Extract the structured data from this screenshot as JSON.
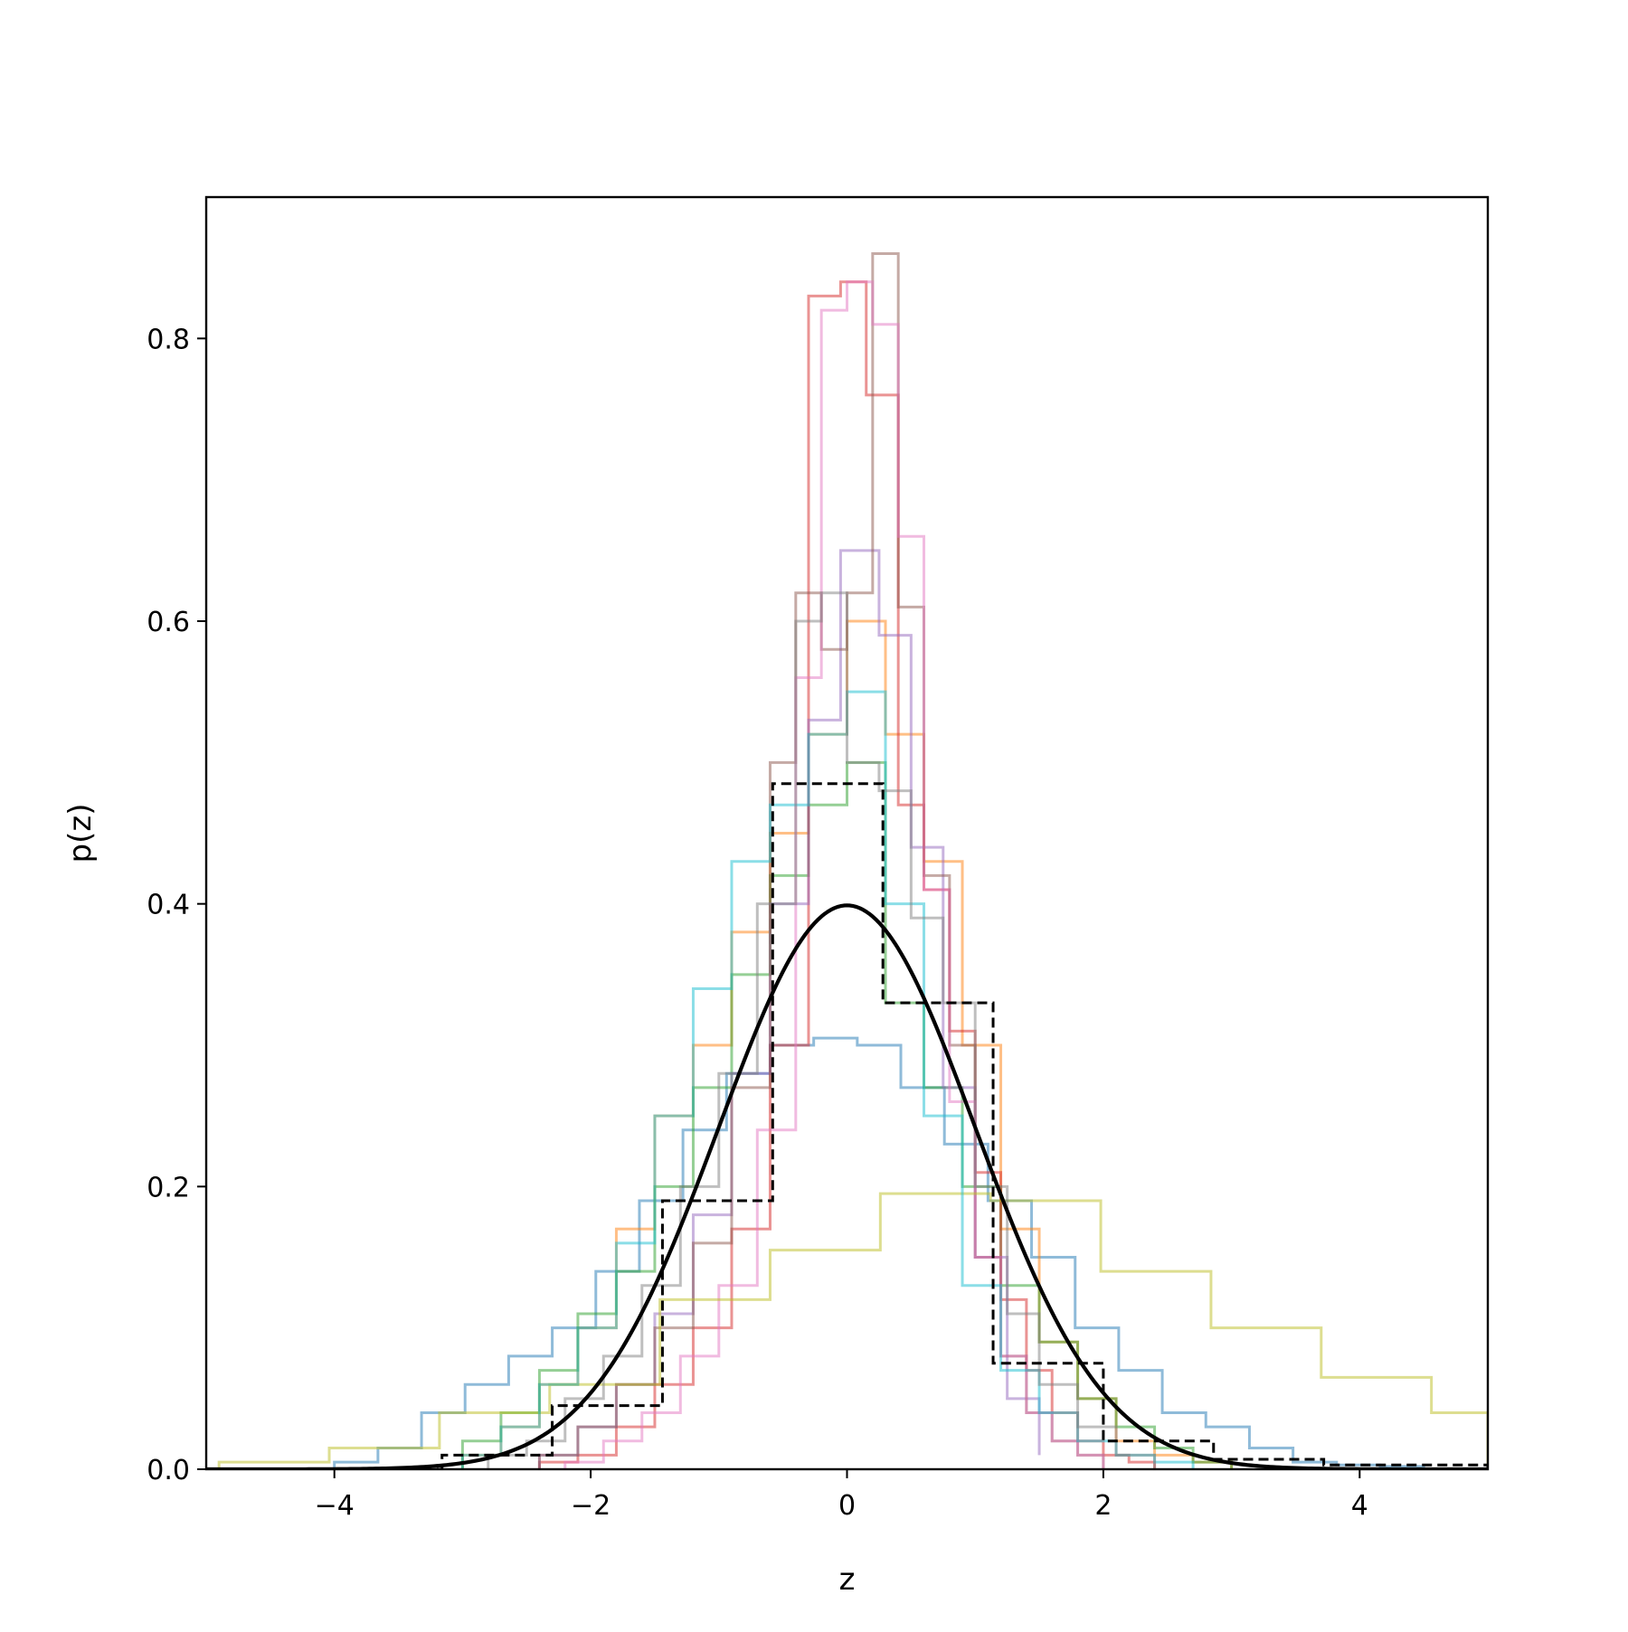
{
  "chart_data": {
    "type": "histogram-step",
    "xlabel": "z",
    "ylabel": "p(z)",
    "xlim": [
      -5,
      5
    ],
    "ylim": [
      0,
      0.9
    ],
    "x_ticks": [
      -4,
      -2,
      0,
      2,
      4
    ],
    "y_ticks": [
      0.0,
      0.2,
      0.4,
      0.6,
      0.8
    ],
    "x_tick_labels": [
      "−4",
      "−2",
      "0",
      "2",
      "4"
    ],
    "y_tick_labels": [
      "0.0",
      "0.2",
      "0.4",
      "0.6",
      "0.8"
    ],
    "grid": false,
    "legend": false,
    "series": [
      {
        "color": "#1f77b4",
        "edges": [
          -4.0,
          -3.66,
          -3.32,
          -2.98,
          -2.64,
          -2.3,
          -1.96,
          -1.62,
          -1.28,
          -0.94,
          -0.6,
          -0.26,
          0.08,
          0.42,
          0.76,
          1.1,
          1.44,
          1.78,
          2.12,
          2.46,
          2.8,
          3.14,
          3.48,
          3.82,
          4.16,
          4.5
        ],
        "values": [
          0.005,
          0.015,
          0.04,
          0.06,
          0.08,
          0.1,
          0.14,
          0.19,
          0.24,
          0.28,
          0.3,
          0.305,
          0.3,
          0.27,
          0.23,
          0.19,
          0.15,
          0.1,
          0.07,
          0.04,
          0.03,
          0.015,
          0.005,
          0.003,
          0.002
        ]
      },
      {
        "color": "#ff7f0e",
        "edges": [
          -3.0,
          -2.7,
          -2.4,
          -2.1,
          -1.8,
          -1.5,
          -1.2,
          -0.9,
          -0.6,
          -0.3,
          0.0,
          0.3,
          0.6,
          0.9,
          1.2,
          1.5,
          1.8,
          2.1,
          2.4,
          2.7,
          3.0
        ],
        "values": [
          0.01,
          0.03,
          0.06,
          0.1,
          0.17,
          0.25,
          0.3,
          0.38,
          0.45,
          0.52,
          0.6,
          0.52,
          0.43,
          0.3,
          0.17,
          0.09,
          0.05,
          0.02,
          0.01,
          0.005
        ]
      },
      {
        "color": "#2ca02c",
        "edges": [
          -3.0,
          -2.7,
          -2.4,
          -2.1,
          -1.8,
          -1.5,
          -1.2,
          -0.9,
          -0.6,
          -0.3,
          0.0,
          0.3,
          0.6,
          0.9,
          1.2,
          1.5,
          1.8,
          2.1,
          2.4,
          2.7,
          3.0
        ],
        "values": [
          0.02,
          0.04,
          0.07,
          0.11,
          0.14,
          0.2,
          0.27,
          0.35,
          0.42,
          0.47,
          0.5,
          0.33,
          0.27,
          0.2,
          0.13,
          0.09,
          0.05,
          0.03,
          0.015,
          0.005
        ]
      },
      {
        "color": "#d62728",
        "edges": [
          -2.4,
          -2.1,
          -1.8,
          -1.5,
          -1.2,
          -0.9,
          -0.6,
          -0.3,
          -0.05,
          0.15,
          0.4,
          0.6,
          0.8,
          1.0,
          1.2,
          1.4,
          1.6,
          1.8,
          2.0,
          2.2,
          2.4
        ],
        "values": [
          0.005,
          0.01,
          0.03,
          0.06,
          0.1,
          0.17,
          0.3,
          0.83,
          0.84,
          0.76,
          0.47,
          0.41,
          0.31,
          0.21,
          0.12,
          0.07,
          0.04,
          0.02,
          0.01,
          0.005
        ]
      },
      {
        "color": "#9467bd",
        "edges": [
          -2.4,
          -2.1,
          -1.8,
          -1.5,
          -1.2,
          -0.9,
          -0.6,
          -0.3,
          -0.05,
          0.25,
          0.5,
          0.75,
          1.0,
          1.25,
          1.5
        ],
        "values": [
          0.01,
          0.03,
          0.06,
          0.11,
          0.18,
          0.28,
          0.4,
          0.53,
          0.65,
          0.59,
          0.44,
          0.27,
          0.15,
          0.05,
          0.01
        ]
      },
      {
        "color": "#8c564b",
        "edges": [
          -2.4,
          -2.1,
          -1.8,
          -1.5,
          -1.2,
          -0.9,
          -0.6,
          -0.4,
          -0.2,
          0.0,
          0.2,
          0.4,
          0.6,
          0.8,
          1.0,
          1.2,
          1.4,
          1.6,
          1.8,
          2.0
        ],
        "values": [
          0.01,
          0.03,
          0.06,
          0.1,
          0.16,
          0.27,
          0.5,
          0.62,
          0.58,
          0.62,
          0.86,
          0.61,
          0.42,
          0.3,
          0.15,
          0.08,
          0.04,
          0.02,
          0.01
        ]
      },
      {
        "color": "#e377c2",
        "edges": [
          -2.2,
          -1.9,
          -1.6,
          -1.3,
          -1.0,
          -0.7,
          -0.4,
          -0.2,
          0.0,
          0.2,
          0.4,
          0.6,
          0.8,
          1.0,
          1.2,
          1.4,
          1.6,
          1.8,
          2.0
        ],
        "values": [
          0.005,
          0.02,
          0.04,
          0.08,
          0.13,
          0.24,
          0.56,
          0.82,
          0.84,
          0.81,
          0.66,
          0.41,
          0.26,
          0.15,
          0.08,
          0.04,
          0.02,
          0.01
        ]
      },
      {
        "color": "#bcbd22",
        "edges": [
          -4.9,
          -4.04,
          -3.18,
          -2.32,
          -1.46,
          -0.6,
          0.26,
          1.12,
          1.98,
          2.84,
          3.7,
          4.56,
          5.0
        ],
        "values": [
          0.005,
          0.015,
          0.04,
          0.06,
          0.12,
          0.155,
          0.195,
          0.19,
          0.14,
          0.1,
          0.065,
          0.04
        ]
      },
      {
        "color": "#17becf",
        "edges": [
          -3.0,
          -2.7,
          -2.4,
          -2.1,
          -1.8,
          -1.5,
          -1.2,
          -0.9,
          -0.6,
          -0.3,
          0.0,
          0.3,
          0.6,
          0.9,
          1.2,
          1.5,
          1.8,
          2.1,
          2.4,
          2.7
        ],
        "values": [
          0.01,
          0.03,
          0.06,
          0.1,
          0.16,
          0.25,
          0.34,
          0.43,
          0.47,
          0.52,
          0.55,
          0.4,
          0.25,
          0.13,
          0.07,
          0.04,
          0.02,
          0.01,
          0.005
        ]
      },
      {
        "color": "#7f7f7f",
        "edges": [
          -2.8,
          -2.5,
          -2.2,
          -1.9,
          -1.6,
          -1.3,
          -1.0,
          -0.7,
          -0.4,
          -0.2,
          0.0,
          0.25,
          0.5,
          0.75,
          1.0,
          1.25,
          1.5,
          1.8,
          2.1,
          2.4
        ],
        "values": [
          0.01,
          0.02,
          0.05,
          0.08,
          0.13,
          0.2,
          0.28,
          0.4,
          0.6,
          0.62,
          0.5,
          0.48,
          0.39,
          0.33,
          0.2,
          0.11,
          0.06,
          0.03,
          0.01
        ]
      },
      {
        "color": "#000000",
        "style": "dashed",
        "edges": [
          -5.0,
          -3.16,
          -2.3,
          -1.44,
          -0.58,
          0.28,
          1.14,
          2.0,
          2.86,
          3.72,
          5.0
        ],
        "values": [
          0.0,
          0.01,
          0.045,
          0.19,
          0.485,
          0.33,
          0.075,
          0.02,
          0.007,
          0.003
        ]
      },
      {
        "color": "#000000",
        "style": "solid-curve",
        "curve_type": "gaussian",
        "mean": 0,
        "std": 1
      }
    ]
  }
}
